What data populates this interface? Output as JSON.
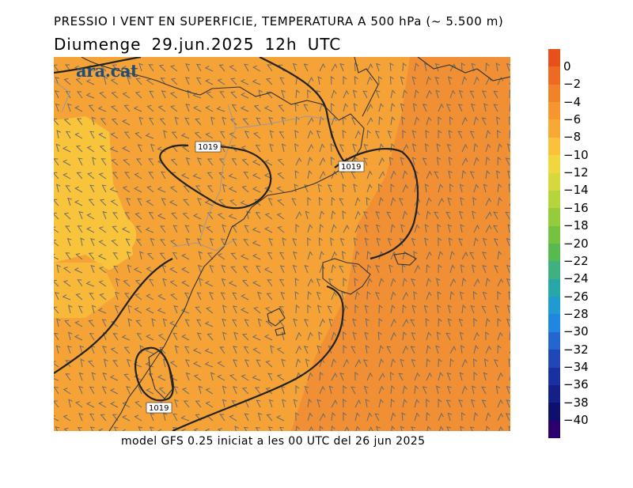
{
  "header": {
    "title": "PRESSIO I VENT EN SUPERFICIE, TEMPERATURA A 500 hPa (~ 5.500 m)",
    "subtitle": "Diumenge  29.jun.2025  12h  UTC"
  },
  "footer": {
    "model_note": "model GFS 0.25 iniciat a les 00 UTC del 26 jun 2025"
  },
  "logo": {
    "text": "ara.cat"
  },
  "isobars": [
    {
      "label": "1019"
    },
    {
      "label": "1019"
    },
    {
      "label": "1019"
    }
  ],
  "colorbar": {
    "labels": [
      "0",
      "−2",
      "−4",
      "−6",
      "−8",
      "−10",
      "−12",
      "−14",
      "−16",
      "−18",
      "−20",
      "−22",
      "−24",
      "−26",
      "−28",
      "−30",
      "−32",
      "−34",
      "−36",
      "−38",
      "−40"
    ],
    "colors": [
      "#e8501a",
      "#ee6a23",
      "#f2822a",
      "#f5962e",
      "#f8a934",
      "#f9c23a",
      "#f2d63d",
      "#d7d83e",
      "#b6d43c",
      "#94cc3c",
      "#74c340",
      "#56ba4e",
      "#3fb180",
      "#27a8a8",
      "#1e9bd1",
      "#1f86e2",
      "#2366cf",
      "#2047b8",
      "#1a2fa0",
      "#141f88",
      "#0f0f6e",
      "#2b006e"
    ]
  },
  "colors": {
    "warm_field": "#f5a236",
    "orange_field": "#f08f33",
    "yellow_field": "#f8c43c",
    "coast": "#333333",
    "isobar": "#222222",
    "barb": "#6a6a6a"
  }
}
